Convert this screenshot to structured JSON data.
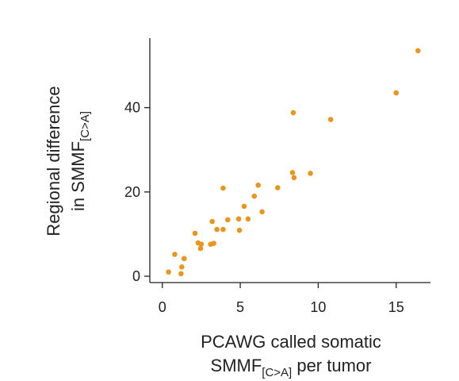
{
  "chart_data": {
    "type": "scatter",
    "xlabel": "PCAWG called somatic",
    "xlabel_line2": "SMMF",
    "xlabel_line2_sub": "[C>A]",
    "xlabel_line2_suffix": " per tumor",
    "ylabel": "Regional difference",
    "ylabel_line2": "in SMMF",
    "ylabel_line2_sub": "[C>A]",
    "xlim": [
      -0.8,
      17.2
    ],
    "ylim": [
      -1.5,
      56.5
    ],
    "xticks": [
      0,
      5,
      10,
      15
    ],
    "yticks": [
      0,
      20,
      40
    ],
    "grid": false,
    "marker_color": "#E8961E",
    "points": [
      {
        "x": 0.4,
        "y": 1.0
      },
      {
        "x": 0.8,
        "y": 5.2
      },
      {
        "x": 1.2,
        "y": 0.6
      },
      {
        "x": 1.25,
        "y": 2.2
      },
      {
        "x": 1.4,
        "y": 4.2
      },
      {
        "x": 2.1,
        "y": 10.2
      },
      {
        "x": 2.3,
        "y": 7.9
      },
      {
        "x": 2.45,
        "y": 6.6
      },
      {
        "x": 2.5,
        "y": 7.6
      },
      {
        "x": 3.1,
        "y": 7.6
      },
      {
        "x": 3.2,
        "y": 13.0
      },
      {
        "x": 3.3,
        "y": 7.8
      },
      {
        "x": 3.5,
        "y": 11.1
      },
      {
        "x": 3.9,
        "y": 11.1
      },
      {
        "x": 3.9,
        "y": 20.9
      },
      {
        "x": 4.2,
        "y": 13.4
      },
      {
        "x": 4.9,
        "y": 13.6
      },
      {
        "x": 4.95,
        "y": 10.9
      },
      {
        "x": 5.25,
        "y": 16.6
      },
      {
        "x": 5.5,
        "y": 13.6
      },
      {
        "x": 5.9,
        "y": 19.0
      },
      {
        "x": 6.15,
        "y": 21.6
      },
      {
        "x": 6.4,
        "y": 15.3
      },
      {
        "x": 7.4,
        "y": 21.0
      },
      {
        "x": 8.35,
        "y": 24.6
      },
      {
        "x": 8.4,
        "y": 38.8
      },
      {
        "x": 8.45,
        "y": 23.4
      },
      {
        "x": 9.5,
        "y": 24.4
      },
      {
        "x": 10.8,
        "y": 37.2
      },
      {
        "x": 15.0,
        "y": 43.5
      },
      {
        "x": 16.4,
        "y": 53.5
      }
    ]
  }
}
